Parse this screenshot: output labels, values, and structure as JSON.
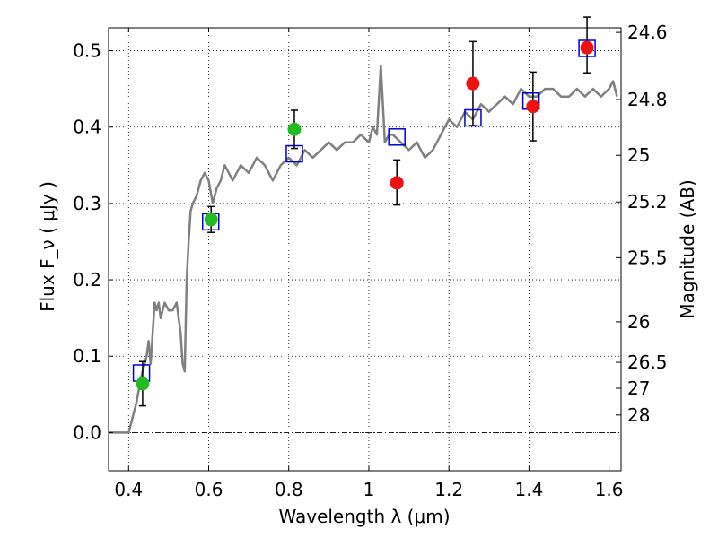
{
  "chart_data": {
    "type": "scatter",
    "xlabel": "Wavelength  λ (μm)",
    "ylabel": "Flux  F_ν  ( μJy )",
    "ylabel_right": "Magnitude (AB)",
    "xlim": [
      0.35,
      1.63
    ],
    "ylim": [
      -0.05,
      0.53
    ],
    "grid": true,
    "x_ticks": [
      0.4,
      0.6,
      0.8,
      1.0,
      1.2,
      1.4,
      1.6
    ],
    "x_tick_labels": [
      "0.4",
      "0.6",
      "0.8",
      "1",
      "1.2",
      "1.4",
      "1.6"
    ],
    "y_ticks": [
      0.0,
      0.1,
      0.2,
      0.3,
      0.4,
      0.5
    ],
    "y_tick_labels": [
      "0.0",
      "0.1",
      "0.2",
      "0.3",
      "0.4",
      "0.5"
    ],
    "right_ticks": [
      {
        "label": "24.6",
        "flux": 0.524
      },
      {
        "label": "24.8",
        "flux": 0.436
      },
      {
        "label": "25",
        "flux": 0.363
      },
      {
        "label": "25.2",
        "flux": 0.302
      },
      {
        "label": "25.5",
        "flux": 0.229
      },
      {
        "label": "26",
        "flux": 0.145
      },
      {
        "label": "26.5",
        "flux": 0.092
      },
      {
        "label": "27",
        "flux": 0.058
      },
      {
        "label": "28",
        "flux": 0.023
      }
    ],
    "series": [
      {
        "kind": "model_spectrum",
        "color": "#808080",
        "x": [
          0.35,
          0.4,
          0.41,
          0.42,
          0.43,
          0.435,
          0.44,
          0.445,
          0.45,
          0.455,
          0.46,
          0.465,
          0.47,
          0.475,
          0.48,
          0.49,
          0.5,
          0.51,
          0.52,
          0.53,
          0.535,
          0.54,
          0.545,
          0.55,
          0.555,
          0.56,
          0.57,
          0.58,
          0.59,
          0.6,
          0.61,
          0.62,
          0.63,
          0.64,
          0.66,
          0.68,
          0.7,
          0.72,
          0.74,
          0.76,
          0.78,
          0.8,
          0.82,
          0.84,
          0.86,
          0.88,
          0.9,
          0.92,
          0.94,
          0.96,
          0.98,
          1.0,
          1.01,
          1.02,
          1.03,
          1.035,
          1.04,
          1.05,
          1.06,
          1.08,
          1.1,
          1.12,
          1.14,
          1.16,
          1.18,
          1.2,
          1.22,
          1.24,
          1.26,
          1.28,
          1.3,
          1.32,
          1.34,
          1.36,
          1.38,
          1.4,
          1.42,
          1.44,
          1.46,
          1.48,
          1.5,
          1.52,
          1.54,
          1.56,
          1.58,
          1.6,
          1.61,
          1.62
        ],
        "y": [
          0.0,
          0.0,
          0.02,
          0.04,
          0.07,
          0.08,
          0.09,
          0.1,
          0.12,
          0.09,
          0.13,
          0.17,
          0.16,
          0.17,
          0.15,
          0.17,
          0.16,
          0.16,
          0.17,
          0.13,
          0.09,
          0.08,
          0.2,
          0.25,
          0.29,
          0.3,
          0.31,
          0.33,
          0.34,
          0.33,
          0.3,
          0.32,
          0.33,
          0.35,
          0.33,
          0.35,
          0.34,
          0.36,
          0.35,
          0.33,
          0.35,
          0.36,
          0.35,
          0.37,
          0.36,
          0.37,
          0.38,
          0.37,
          0.38,
          0.38,
          0.39,
          0.38,
          0.4,
          0.39,
          0.48,
          0.43,
          0.38,
          0.39,
          0.39,
          0.38,
          0.37,
          0.38,
          0.36,
          0.37,
          0.39,
          0.41,
          0.4,
          0.42,
          0.41,
          0.43,
          0.42,
          0.43,
          0.44,
          0.43,
          0.45,
          0.44,
          0.44,
          0.45,
          0.45,
          0.44,
          0.44,
          0.45,
          0.44,
          0.45,
          0.44,
          0.45,
          0.46,
          0.44
        ]
      },
      {
        "kind": "model_photometry",
        "marker": "square",
        "color": "#0000cc",
        "x": [
          0.432,
          0.605,
          0.814,
          1.07,
          1.26,
          1.405,
          1.545
        ],
        "y": [
          0.078,
          0.276,
          0.365,
          0.387,
          0.412,
          0.434,
          0.503
        ]
      },
      {
        "kind": "observed",
        "marker": "circle",
        "color": "#22bb22",
        "x": [
          0.435,
          0.606,
          0.814
        ],
        "y": [
          0.064,
          0.279,
          0.397
        ],
        "yerr_low": [
          0.029,
          0.017,
          0.025
        ],
        "yerr_high": [
          0.029,
          0.017,
          0.025
        ]
      },
      {
        "kind": "observed",
        "marker": "circle",
        "color": "#ee1111",
        "x": [
          1.07,
          1.26,
          1.41,
          1.545
        ],
        "y": [
          0.327,
          0.457,
          0.427,
          0.504
        ],
        "yerr_low": [
          0.029,
          0.055,
          0.045,
          0.033
        ],
        "yerr_high": [
          0.03,
          0.055,
          0.045,
          0.04
        ]
      }
    ]
  }
}
